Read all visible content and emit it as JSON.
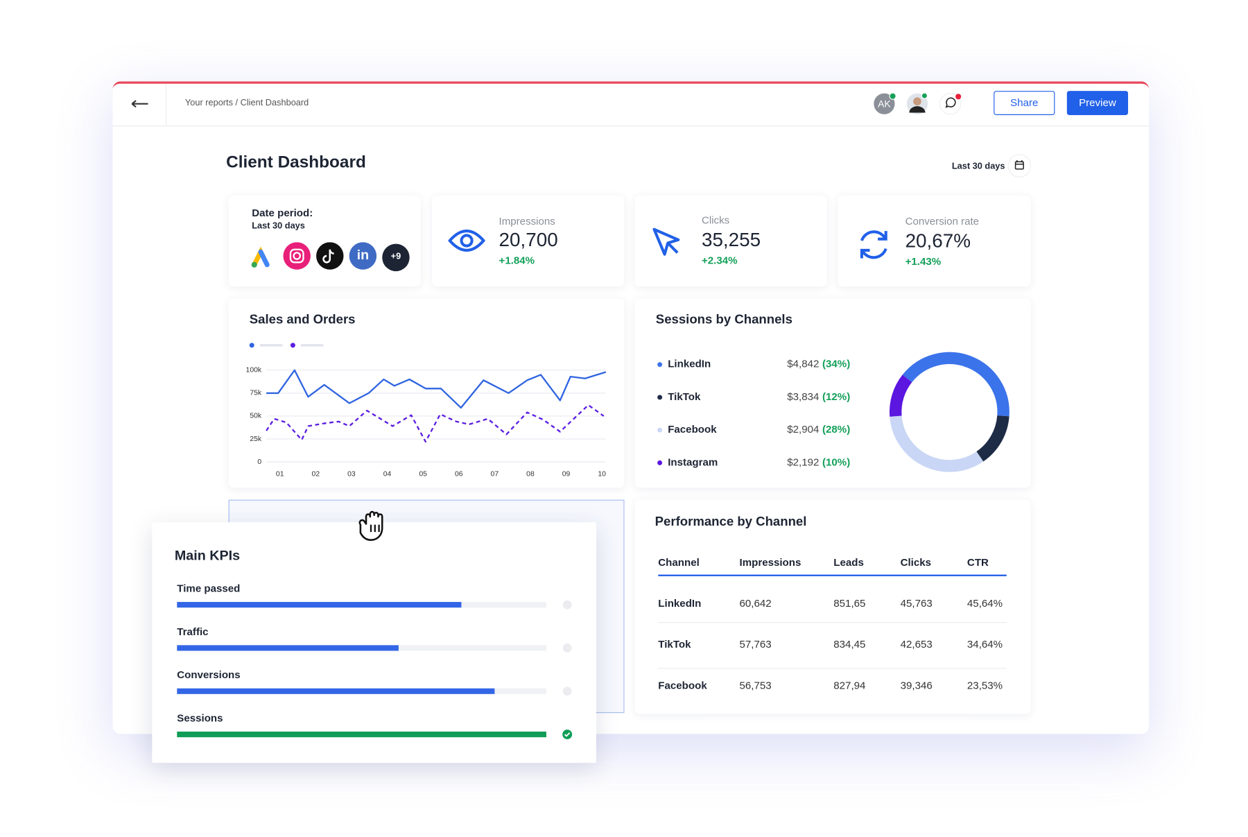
{
  "header": {
    "breadcrumb": "Your reports / Client Dashboard",
    "avatar": "AK",
    "share": "Share",
    "preview": "Preview"
  },
  "title": "Client Dashboard",
  "date_range": "Last 30 days",
  "date_card": {
    "label": "Date period:",
    "value": "Last 30 days",
    "icon_labels": [
      "ads",
      "ads",
      "ads"
    ],
    "more": "+9"
  },
  "stats": [
    {
      "label": "Impressions",
      "value": "20,700",
      "change": "+1.84%"
    },
    {
      "label": "Clicks",
      "value": "35,255",
      "change": "+2.34%"
    },
    {
      "label": "Conversion rate",
      "value": "20,67%",
      "change": "+1.43%"
    }
  ],
  "chart_data": [
    {
      "type": "line",
      "title": "Sales and Orders",
      "xlim": [
        0.62,
        10.11
      ],
      "xticks": [
        {
          "value": 1,
          "label": "01"
        },
        {
          "value": 2,
          "label": "02"
        },
        {
          "value": 3,
          "label": "03"
        },
        {
          "value": 4,
          "label": "04"
        },
        {
          "value": 5,
          "label": "05"
        },
        {
          "value": 6,
          "label": "06"
        },
        {
          "value": 7,
          "label": "07"
        },
        {
          "value": 8,
          "label": "08"
        },
        {
          "value": 9,
          "label": "09"
        },
        {
          "value": 10,
          "label": "10"
        }
      ],
      "ylim": [
        0,
        100000
      ],
      "yticks": [
        0,
        {
          "value": 25000,
          "label": "25k"
        },
        {
          "value": 50000,
          "label": "50k"
        },
        {
          "value": 75000,
          "label": "75k"
        },
        {
          "value": 100000,
          "label": "100k"
        }
      ],
      "grid": true,
      "series": [
        {
          "color": "#2f64e0",
          "dashed": false,
          "x": [
            0.62,
            0.95,
            1.41,
            1.79,
            2.24,
            2.94,
            3.48,
            3.9,
            4.2,
            4.62,
            5.07,
            5.5,
            6.06,
            6.69,
            7.39,
            7.91,
            8.29,
            8.83,
            9.12,
            9.53,
            10.11
          ],
          "values": [
            75000,
            75000,
            100000,
            71000,
            84000,
            64000,
            75000,
            90000,
            83000,
            90000,
            80000,
            80000,
            59000,
            89000,
            75000,
            89000,
            95000,
            67000,
            93000,
            91000,
            98000
          ]
        },
        {
          "color": "#5b1ee0",
          "dashed": true,
          "x": [
            0.62,
            0.84,
            1.18,
            1.61,
            1.79,
            2.24,
            2.64,
            2.94,
            3.43,
            4.15,
            4.67,
            5.07,
            5.48,
            5.93,
            6.29,
            6.81,
            7.33,
            7.91,
            8.36,
            8.83,
            9.62,
            10.05
          ],
          "values": [
            34000,
            47000,
            43000,
            24000,
            39000,
            42000,
            44000,
            39000,
            56000,
            39000,
            51000,
            22000,
            52000,
            44000,
            41000,
            47000,
            30000,
            54000,
            46000,
            33000,
            62000,
            50000
          ]
        }
      ]
    },
    {
      "type": "pie",
      "title": "Sessions by Channels",
      "categories": [
        "LinkedIn",
        "TikTok",
        "Facebook",
        "Instagram"
      ],
      "amounts": [
        4842,
        3834,
        2904,
        2192
      ],
      "amount_labels": [
        "$4,842",
        "$3,834",
        "$2,904",
        "$2,192"
      ],
      "values": [
        34,
        12,
        28,
        10
      ],
      "value_labels": [
        "(34%)",
        "(12%)",
        "(28%)",
        "(10%)"
      ],
      "colors": [
        "#3b73ea",
        "#1d2b45",
        "#c9d6f5",
        "#5b16e0"
      ]
    },
    {
      "type": "bar",
      "orientation": "horizontal",
      "title": "Main KPIs",
      "categories": [
        "Time passed",
        "Traffic",
        "Conversions",
        "Sessions"
      ],
      "values": [
        77,
        60,
        86,
        100
      ],
      "xlim": [
        0,
        100
      ],
      "colors": [
        "#3366e6",
        "#3366e6",
        "#3366e6",
        "#0f9d58"
      ]
    }
  ],
  "table": {
    "title": "Performance by Channel",
    "columns": [
      "Channel",
      "Impressions",
      "Leads",
      "Clicks",
      "CTR"
    ],
    "rows": [
      [
        "LinkedIn",
        "60,642",
        "851,65",
        "45,763",
        "45,64%"
      ],
      [
        "TikTok",
        "57,763",
        "834,45",
        "42,653",
        "34,64%"
      ],
      [
        "Facebook",
        "56,753",
        "827,94",
        "39,346",
        "23,53%"
      ]
    ]
  }
}
